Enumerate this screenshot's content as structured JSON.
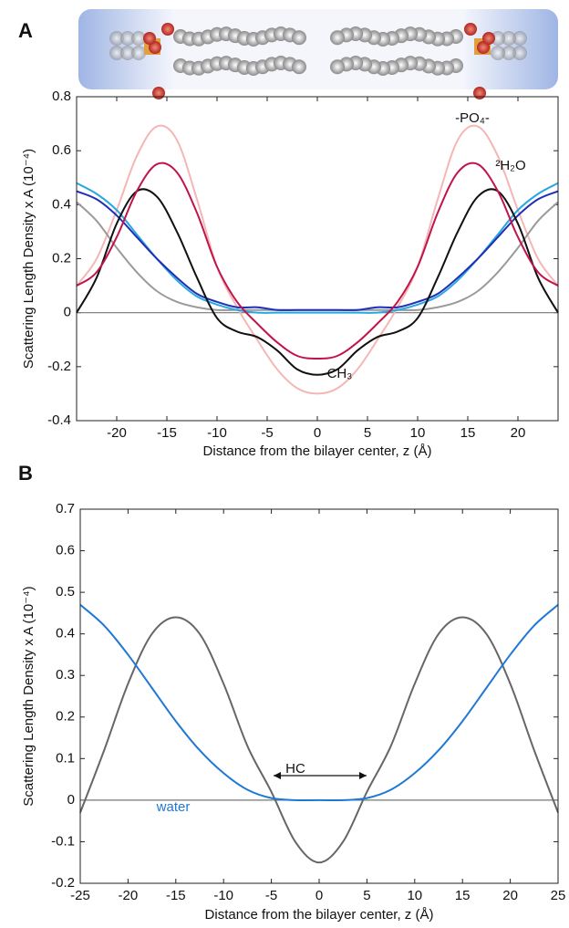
{
  "panels": [
    "A",
    "B"
  ],
  "chart_data": [
    {
      "type": "line",
      "xlabel": "Distance from the bilayer center, z (Å)",
      "ylabel": "Scattering Length Density x A (10⁻⁴)",
      "x": [
        -24,
        -22,
        -20,
        -18,
        -16,
        -14,
        -12,
        -10,
        -8,
        -6,
        -4,
        -2,
        0,
        2,
        4,
        6,
        8,
        10,
        12,
        14,
        16,
        18,
        20,
        22,
        24
      ],
      "xlim": [
        -24,
        24
      ],
      "xticks": [
        -20,
        -15,
        -10,
        -5,
        0,
        5,
        10,
        15,
        20
      ],
      "ylim": [
        -0.4,
        0.8
      ],
      "yticks": [
        -0.4,
        -0.2,
        0,
        0.2,
        0.4,
        0.6,
        0.8
      ],
      "series": [
        {
          "color": "#f4b6b6",
          "values": [
            0.1,
            0.2,
            0.38,
            0.58,
            0.69,
            0.64,
            0.42,
            0.17,
            0.02,
            -0.1,
            -0.21,
            -0.28,
            -0.3,
            -0.28,
            -0.21,
            -0.1,
            0.02,
            0.17,
            0.42,
            0.64,
            0.69,
            0.58,
            0.38,
            0.2,
            0.1
          ]
        },
        {
          "color": "#9a9a9a",
          "values": [
            0.41,
            0.34,
            0.24,
            0.15,
            0.08,
            0.04,
            0.02,
            0.01,
            0.01,
            0.01,
            0.01,
            0.01,
            0.01,
            0.01,
            0.01,
            0.01,
            0.01,
            0.01,
            0.02,
            0.04,
            0.08,
            0.15,
            0.24,
            0.34,
            0.41
          ]
        },
        {
          "color": "#29a8e0",
          "values": [
            0.48,
            0.44,
            0.38,
            0.29,
            0.2,
            0.12,
            0.06,
            0.03,
            0.01,
            0,
            0,
            0,
            0,
            0,
            0,
            0,
            0.01,
            0.03,
            0.06,
            0.12,
            0.2,
            0.29,
            0.38,
            0.44,
            0.48
          ]
        },
        {
          "color": "#1f2fb8",
          "values": [
            0.45,
            0.42,
            0.36,
            0.28,
            0.2,
            0.13,
            0.07,
            0.04,
            0.02,
            0.02,
            0.01,
            0.01,
            0.01,
            0.01,
            0.01,
            0.02,
            0.02,
            0.04,
            0.07,
            0.13,
            0.2,
            0.28,
            0.36,
            0.42,
            0.45
          ]
        },
        {
          "color": "#111111",
          "values": [
            0.0,
            0.13,
            0.33,
            0.45,
            0.43,
            0.3,
            0.13,
            -0.02,
            -0.07,
            -0.09,
            -0.14,
            -0.21,
            -0.23,
            -0.21,
            -0.14,
            -0.09,
            -0.07,
            -0.02,
            0.13,
            0.3,
            0.43,
            0.45,
            0.33,
            0.13,
            0.0
          ]
        },
        {
          "color": "#c0144a",
          "values": [
            0.1,
            0.15,
            0.28,
            0.45,
            0.55,
            0.52,
            0.37,
            0.17,
            0.04,
            -0.04,
            -0.11,
            -0.16,
            -0.17,
            -0.16,
            -0.11,
            -0.04,
            0.04,
            0.17,
            0.37,
            0.52,
            0.55,
            0.45,
            0.28,
            0.15,
            0.1
          ]
        }
      ],
      "annotations": [
        "-PO₄-",
        "²H₂O",
        "-CH₃"
      ]
    },
    {
      "type": "line",
      "xlabel": "Distance from the bilayer center, z (Å)",
      "ylabel": "Scattering Length Density x A (10⁻⁴)",
      "x": [
        -25,
        -22.5,
        -20,
        -17.5,
        -15,
        -12.5,
        -10,
        -7.5,
        -5,
        -2.5,
        0,
        2.5,
        5,
        7.5,
        10,
        12.5,
        15,
        17.5,
        20,
        22.5,
        25
      ],
      "xlim": [
        -25,
        25
      ],
      "xticks": [
        -25,
        -20,
        -15,
        -10,
        -5,
        0,
        5,
        10,
        15,
        20,
        25
      ],
      "ylim": [
        -0.2,
        0.7
      ],
      "yticks": [
        -0.2,
        -0.1,
        0,
        0.1,
        0.2,
        0.3,
        0.4,
        0.5,
        0.6,
        0.7
      ],
      "series": [
        {
          "color": "#666666",
          "values": [
            -0.03,
            0.12,
            0.28,
            0.4,
            0.44,
            0.4,
            0.28,
            0.13,
            0.02,
            -0.1,
            -0.15,
            -0.1,
            0.02,
            0.13,
            0.28,
            0.4,
            0.44,
            0.4,
            0.28,
            0.12,
            -0.03
          ]
        },
        {
          "color": "#1f78d6",
          "values": [
            0.47,
            0.42,
            0.35,
            0.27,
            0.19,
            0.12,
            0.065,
            0.025,
            0.005,
            0,
            0,
            0,
            0.005,
            0.025,
            0.065,
            0.12,
            0.19,
            0.27,
            0.35,
            0.42,
            0.47
          ]
        }
      ],
      "annotations": [
        "water",
        "HC"
      ]
    }
  ]
}
